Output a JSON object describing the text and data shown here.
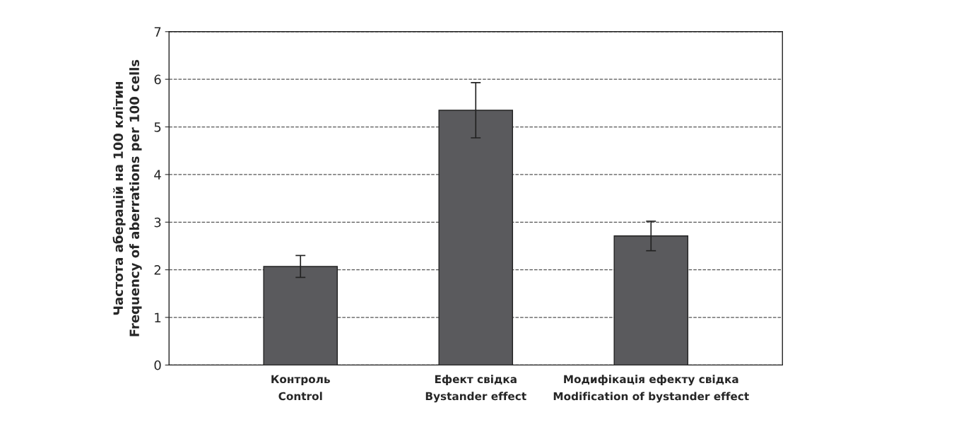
{
  "chart_data": {
    "type": "bar",
    "ylabel": "Частота аберацій на 100 клітин\nFrequency of aberrations per 100 cells",
    "categories": [
      "Контроль\nControl",
      "Ефект свідка\nBystander effect",
      "Модифікація ефекту свідка\nModification of bystander effect"
    ],
    "values": [
      2.07,
      5.35,
      2.71
    ],
    "errors": [
      0.23,
      0.58,
      0.31
    ],
    "color": "#5a5a5d",
    "ylim": [
      0,
      7
    ],
    "yticks": [
      0,
      1,
      2,
      3,
      4,
      5,
      6,
      7
    ],
    "grid": "y",
    "line_style": "dashed"
  }
}
